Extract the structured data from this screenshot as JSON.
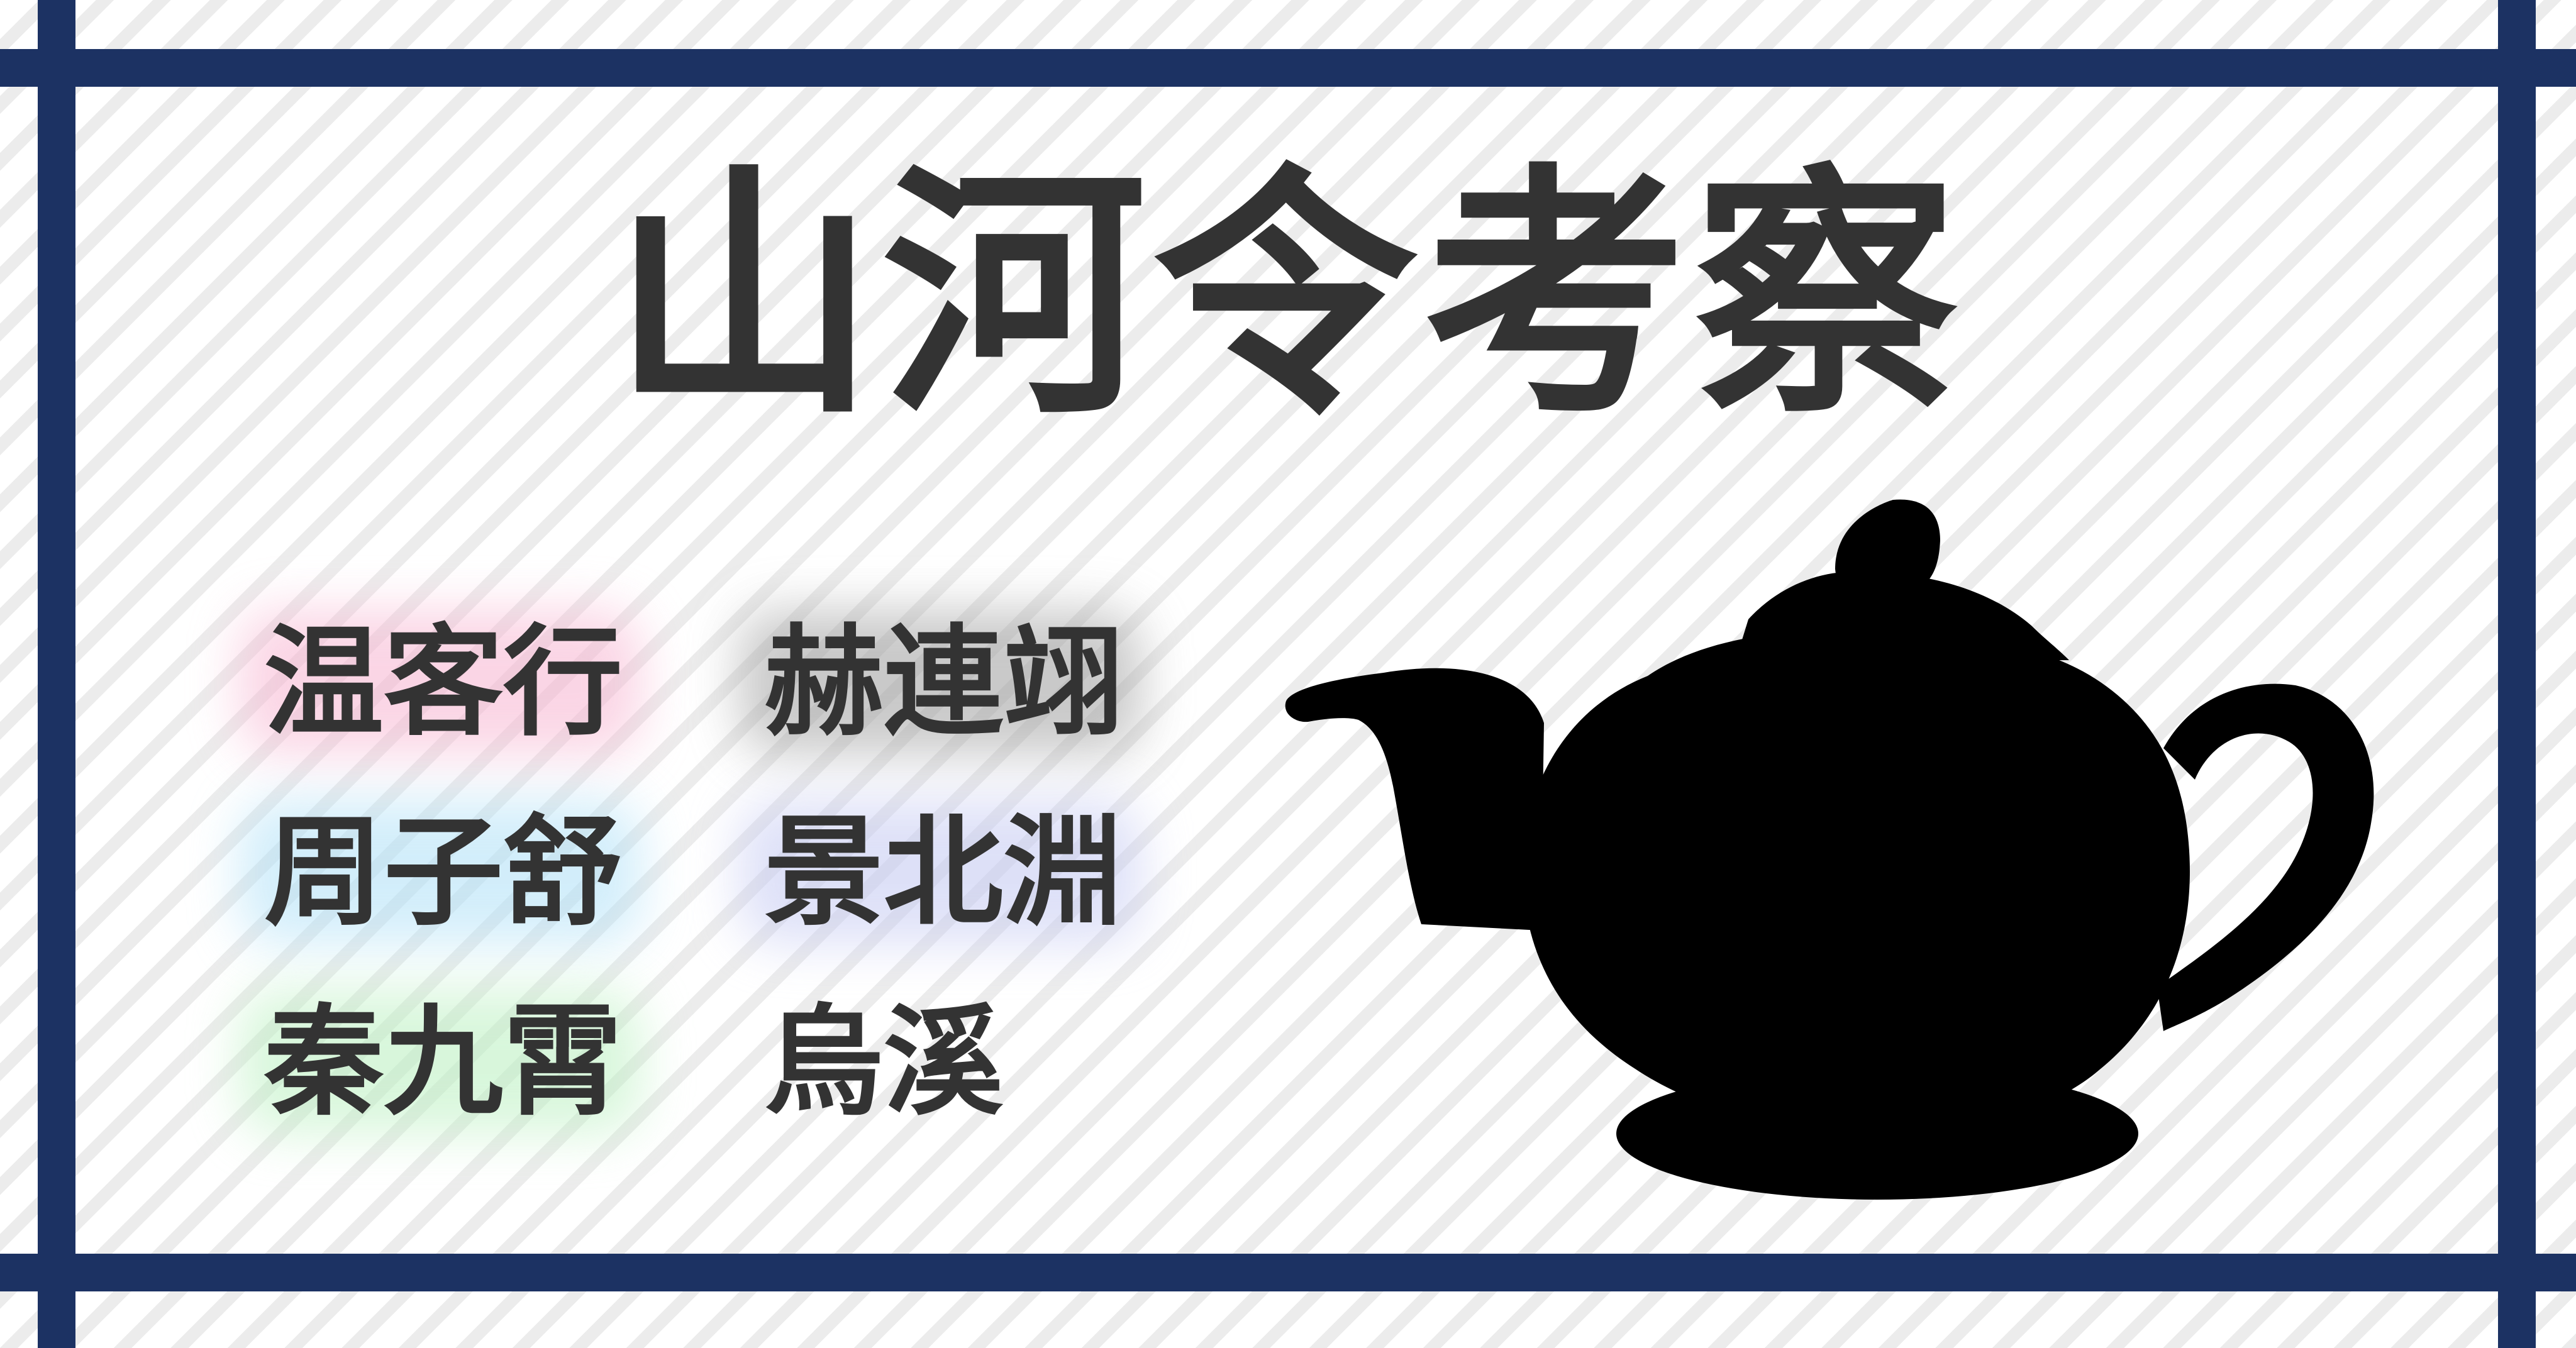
{
  "title": "山河令考察",
  "colors": {
    "frame": "#1c3263",
    "ink": "#333333",
    "silhouette": "#000000"
  },
  "characters": [
    {
      "name": "温客行",
      "glow": "#f7b3d0"
    },
    {
      "name": "周子舒",
      "glow": "#aee0f7"
    },
    {
      "name": "秦九霄",
      "glow": "#b9f0bf"
    },
    {
      "name": "赫連翊",
      "glow": "#9d9d9d"
    },
    {
      "name": "景北淵",
      "glow": "#c3c8f2"
    },
    {
      "name": "烏溪",
      "glow": ""
    }
  ],
  "illustration": {
    "icon": "teapot-silhouette-icon"
  }
}
